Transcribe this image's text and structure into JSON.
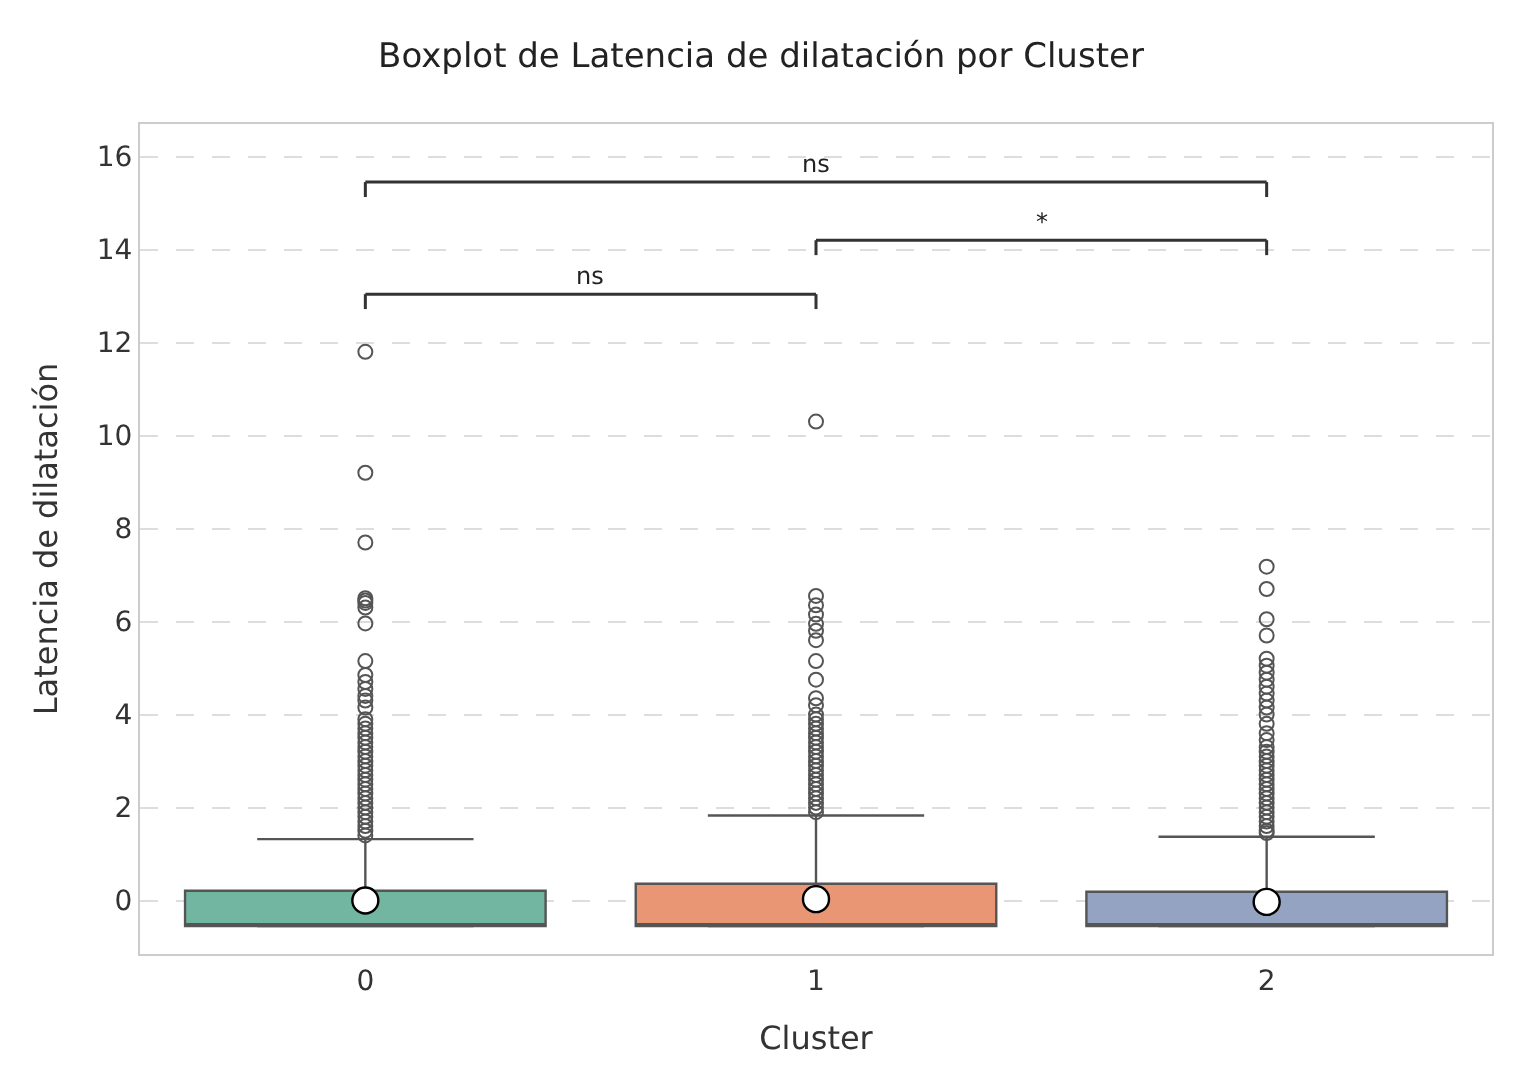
{
  "chart_data": {
    "type": "box",
    "title": "Boxplot de Latencia de dilatación por Cluster",
    "xlabel": "Cluster",
    "ylabel": "Latencia de dilatación",
    "categories": [
      "0",
      "1",
      "2"
    ],
    "colors": [
      "#72b6a1",
      "#e99675",
      "#95a3c3"
    ],
    "boxes": [
      {
        "low": -0.55,
        "q1": -0.55,
        "median": -0.55,
        "q3": 0.21,
        "high": 1.32,
        "mean": 0.0,
        "outliers": [
          11.8,
          9.2,
          7.7,
          6.5,
          6.45,
          6.4,
          6.3,
          5.96,
          5.15,
          4.85,
          4.7,
          4.55,
          4.4,
          4.3,
          4.15,
          3.9,
          3.8,
          3.7,
          3.6,
          3.5,
          3.4,
          3.3,
          3.2,
          3.1,
          3.0,
          2.9,
          2.8,
          2.7,
          2.6,
          2.5,
          2.4,
          2.3,
          2.2,
          2.1,
          2.0,
          1.9,
          1.8,
          1.7,
          1.6,
          1.5,
          1.4
        ]
      },
      {
        "low": -0.55,
        "q1": -0.55,
        "median": -0.55,
        "q3": 0.36,
        "high": 1.83,
        "mean": 0.03,
        "outliers": [
          10.3,
          6.55,
          6.35,
          6.15,
          5.95,
          5.8,
          5.6,
          5.15,
          4.75,
          4.35,
          4.2,
          4.0,
          3.9,
          3.8,
          3.7,
          3.6,
          3.5,
          3.4,
          3.3,
          3.2,
          3.1,
          3.0,
          2.9,
          2.8,
          2.7,
          2.6,
          2.5,
          2.4,
          2.3,
          2.2,
          2.1,
          2.0,
          1.9
        ]
      },
      {
        "low": -0.55,
        "q1": -0.55,
        "median": -0.55,
        "q3": 0.19,
        "high": 1.37,
        "mean": -0.03,
        "outliers": [
          7.18,
          6.7,
          6.05,
          5.7,
          5.2,
          5.05,
          4.9,
          4.75,
          4.6,
          4.45,
          4.3,
          4.15,
          4.0,
          3.8,
          3.6,
          3.45,
          3.3,
          3.2,
          3.1,
          3.0,
          2.9,
          2.8,
          2.7,
          2.6,
          2.5,
          2.4,
          2.3,
          2.2,
          2.1,
          2.0,
          1.9,
          1.8,
          1.7,
          1.6,
          1.5,
          1.45
        ]
      }
    ],
    "ylim": [
      -1.15,
      16.7
    ],
    "yticks": [
      0,
      2,
      4,
      6,
      8,
      10,
      12,
      14,
      16
    ],
    "grid": "y",
    "annotations": [
      "ns",
      "*",
      "ns"
    ]
  }
}
